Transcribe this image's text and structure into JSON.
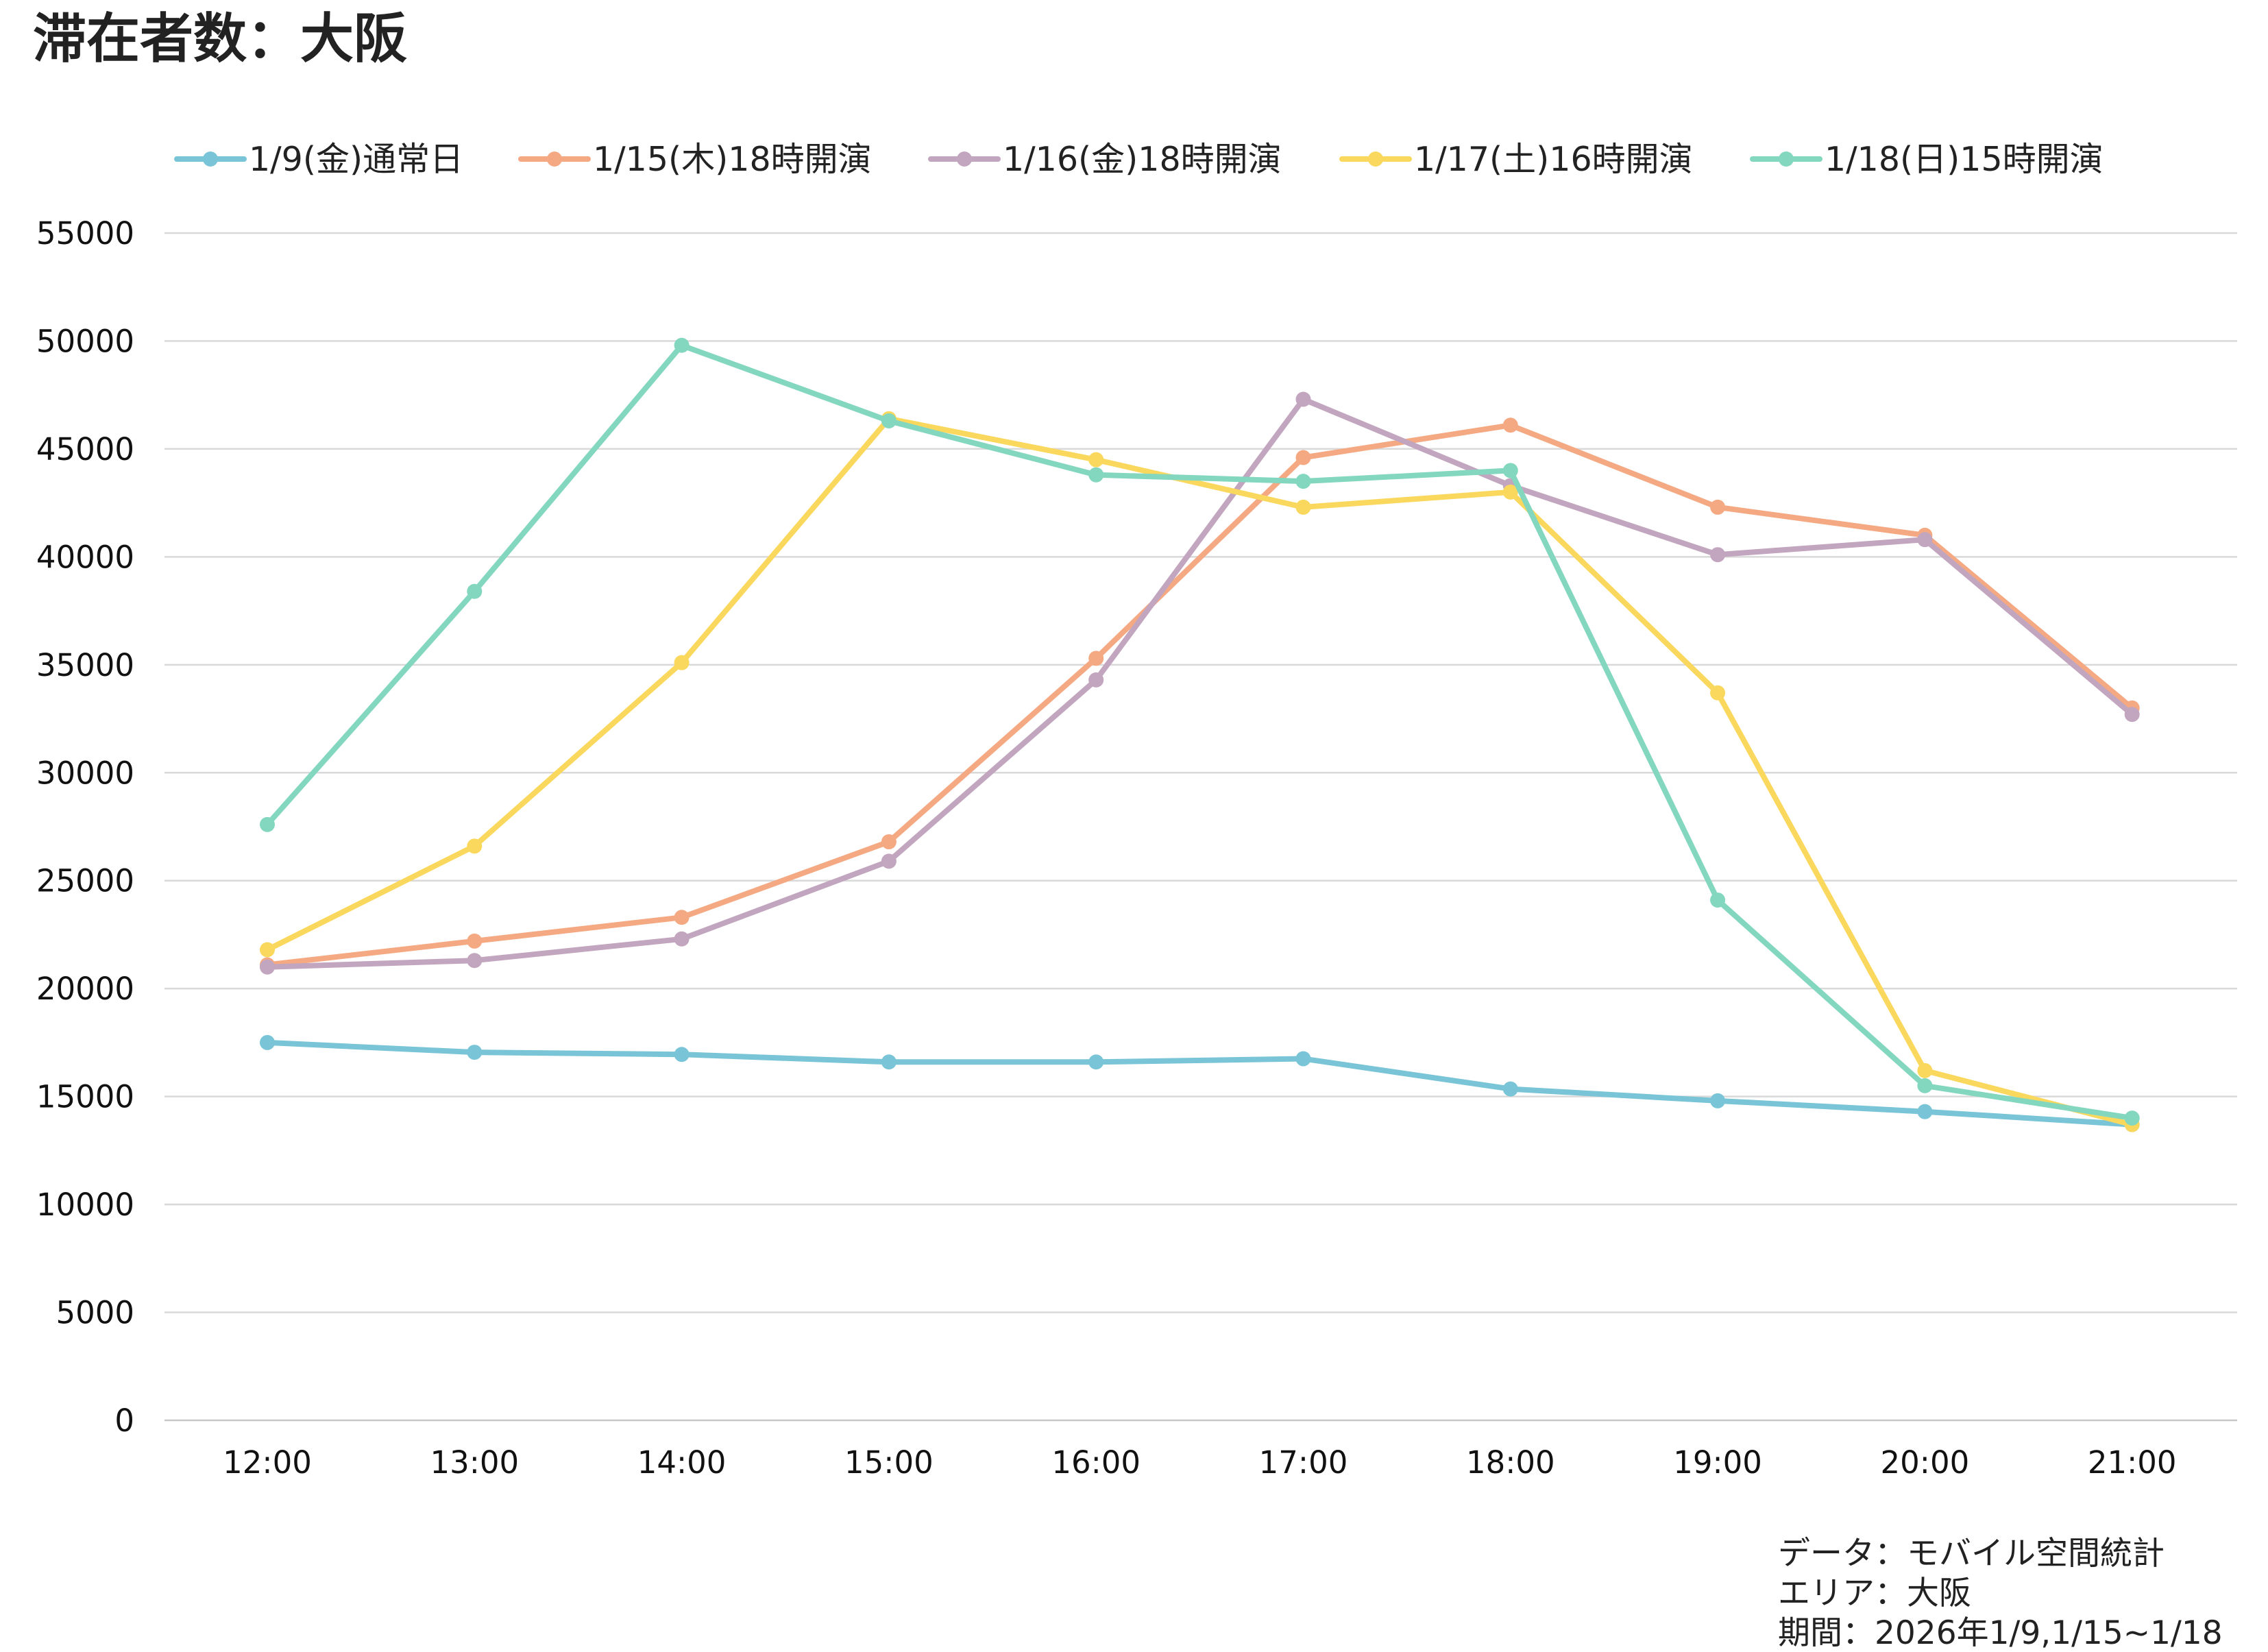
{
  "chart_data": {
    "type": "line",
    "title": "滞在者数：大阪",
    "categories": [
      "12:00",
      "13:00",
      "14:00",
      "15:00",
      "16:00",
      "17:00",
      "18:00",
      "19:00",
      "20:00",
      "21:00"
    ],
    "ylim": [
      0,
      55000
    ],
    "yticks": [
      0,
      5000,
      10000,
      15000,
      20000,
      25000,
      30000,
      35000,
      40000,
      45000,
      50000,
      55000
    ],
    "grid": true,
    "legend_position": "top",
    "xlabel": "",
    "ylabel": "",
    "series": [
      {
        "name": "1/9(金)通常日",
        "color": "#79C5D7",
        "values": [
          17500,
          17050,
          16950,
          16600,
          16600,
          16750,
          15350,
          14800,
          14300,
          13700
        ]
      },
      {
        "name": "1/15(木)18時開演",
        "color": "#F5A983",
        "values": [
          21100,
          22200,
          23300,
          26800,
          35300,
          44600,
          46100,
          42300,
          41000,
          33000
        ]
      },
      {
        "name": "1/16(金)18時開演",
        "color": "#C2A5BE",
        "values": [
          21000,
          21300,
          22300,
          25900,
          34300,
          47300,
          43300,
          40100,
          40800,
          32700
        ]
      },
      {
        "name": "1/17(土)16時開演",
        "color": "#FAD85D",
        "values": [
          21800,
          26600,
          35100,
          46400,
          44500,
          42300,
          43000,
          33700,
          16200,
          13700
        ]
      },
      {
        "name": "1/18(日)15時開演",
        "color": "#82D7BE",
        "values": [
          27600,
          38400,
          49800,
          46300,
          43800,
          43500,
          44000,
          24100,
          15500,
          14000
        ]
      }
    ],
    "notes": [
      "データ：モバイル空間統計",
      "エリア：大阪",
      "期間：2026年1/9,1/15~1/18"
    ]
  }
}
